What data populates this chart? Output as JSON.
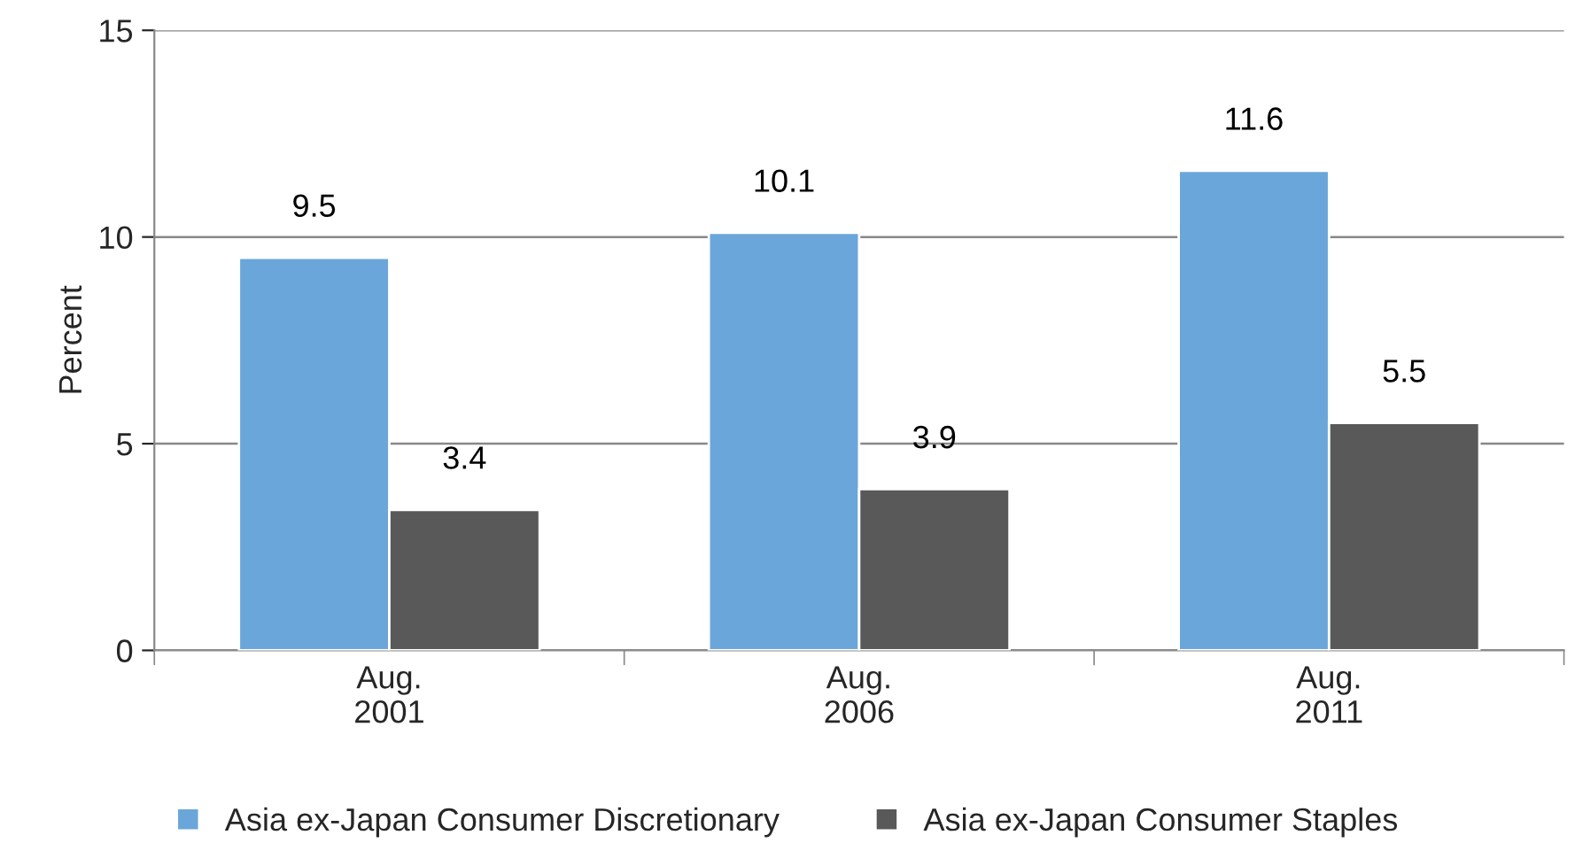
{
  "chart_data": {
    "type": "bar",
    "ylabel": "Percent",
    "categories": [
      "Aug.\n2001",
      "Aug.\n2006",
      "Aug.\n2011"
    ],
    "series": [
      {
        "name": "Asia ex-Japan Consumer Discretionary",
        "color": "#6aa6da",
        "values": [
          9.5,
          10.1,
          11.6
        ]
      },
      {
        "name": "Asia ex-Japan Consumer Staples",
        "color": "#595959",
        "values": [
          3.4,
          3.9,
          5.5
        ]
      }
    ],
    "ylim": [
      0,
      15
    ],
    "yticks": [
      0,
      5,
      10,
      15
    ],
    "grid": "y",
    "legend": "bottom",
    "data_labels": true
  }
}
